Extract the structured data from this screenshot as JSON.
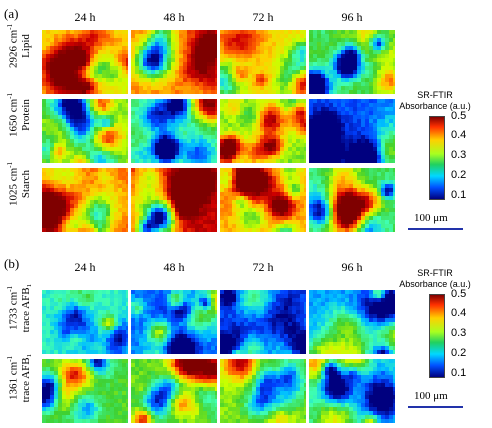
{
  "panels": [
    {
      "label": "(a)",
      "columns": [
        "24 h",
        "48 h",
        "72 h",
        "96 h"
      ],
      "rows": [
        {
          "wavenumber": "2926 cm",
          "exponent": "-1",
          "component": "Lipid",
          "levels": [
            0.35,
            0.4,
            0.36,
            0.27
          ]
        },
        {
          "wavenumber": "1650 cm",
          "exponent": "-1",
          "component": "Protein",
          "levels": [
            0.3,
            0.26,
            0.3,
            0.15
          ]
        },
        {
          "wavenumber": "1025 cm",
          "exponent": "-1",
          "component": "Starch",
          "levels": [
            0.41,
            0.46,
            0.38,
            0.26
          ]
        }
      ],
      "colorbar": {
        "title_line1": "SR-FTIR",
        "title_line2": "Absorbance (a.u.)",
        "ticks": [
          "0.5",
          "0.4",
          "0.3",
          "0.2",
          "0.1"
        ]
      },
      "scalebar": "100 μm"
    },
    {
      "label": "(b)",
      "columns": [
        "24 h",
        "48 h",
        "72 h",
        "96 h"
      ],
      "rows": [
        {
          "wavenumber": "1733 cm",
          "exponent": "-1",
          "component": "trace AFB₁",
          "levels": [
            0.22,
            0.16,
            0.15,
            0.18
          ]
        },
        {
          "wavenumber": "1361 cm",
          "exponent": "-1",
          "component": "trace AFB₁",
          "levels": [
            0.28,
            0.29,
            0.3,
            0.22
          ]
        }
      ],
      "colorbar": {
        "title_line1": "SR-FTIR",
        "title_line2": "Absorbance (a.u.)",
        "ticks": [
          "0.5",
          "0.4",
          "0.3",
          "0.2",
          "0.1"
        ]
      },
      "scalebar": "100 μm"
    }
  ],
  "colors": {
    "scalebar": "#2233aa",
    "colormap": [
      "#00007f",
      "#0040ff",
      "#00c0ff",
      "#40ffb0",
      "#3fd030",
      "#c8ff00",
      "#ffd000",
      "#ff6000",
      "#d00000",
      "#7f0000"
    ]
  }
}
